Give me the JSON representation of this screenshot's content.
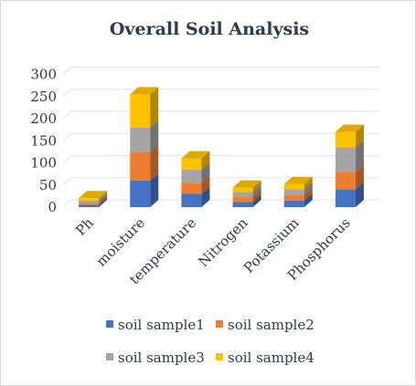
{
  "chart_data": {
    "type": "bar",
    "stacked": true,
    "style": "3d-column",
    "title": "Overall Soil Analysis",
    "categories": [
      "Ph",
      "moisture",
      "temperature",
      "Nitrogen",
      "Potassium",
      "Phosphorus"
    ],
    "series": [
      {
        "name": "soil sample1",
        "color": "#4472c4",
        "values": [
          5,
          60,
          30,
          12,
          15,
          40
        ]
      },
      {
        "name": "soil sample2",
        "color": "#ed7d31",
        "values": [
          5,
          65,
          25,
          12,
          13,
          40
        ]
      },
      {
        "name": "soil sample3",
        "color": "#a5a5a5",
        "values": [
          5,
          55,
          30,
          10,
          12,
          55
        ]
      },
      {
        "name": "soil sample4",
        "color": "#ffc000",
        "values": [
          5,
          75,
          25,
          10,
          12,
          35
        ]
      }
    ],
    "y_ticks": [
      "0",
      "50",
      "100",
      "150",
      "200",
      "250",
      "300"
    ],
    "ylim": [
      0,
      300
    ],
    "grid": true,
    "legend_position": "bottom"
  }
}
